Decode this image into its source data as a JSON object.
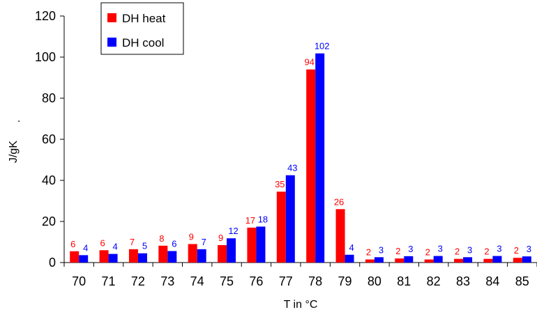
{
  "chart_data": {
    "type": "bar",
    "title": "",
    "xlabel": "T in °C",
    "ylabel": "J/gK",
    "ylabel_suffix": ".",
    "ylim": [
      0,
      120
    ],
    "yticks": [
      0,
      20,
      40,
      60,
      80,
      100,
      120
    ],
    "grid": false,
    "legend_position": "top-left",
    "categories": [
      "70",
      "71",
      "72",
      "73",
      "74",
      "75",
      "76",
      "77",
      "78",
      "79",
      "80",
      "81",
      "82",
      "83",
      "84",
      "85"
    ],
    "series": [
      {
        "name": "DH heat",
        "color": "#ff0000",
        "values": [
          5.5,
          6.0,
          6.5,
          8.2,
          9.0,
          8.5,
          17.0,
          34.5,
          94.0,
          26.0,
          1.5,
          2.0,
          1.5,
          1.8,
          1.8,
          2.3
        ],
        "labels": [
          "6",
          "6",
          "7",
          "8",
          "9",
          "9",
          "17",
          "35",
          "94",
          "26",
          "2",
          "2",
          "2",
          "2",
          "2",
          "2"
        ]
      },
      {
        "name": "DH cool",
        "color": "#0000ff",
        "values": [
          3.6,
          4.2,
          4.5,
          5.6,
          6.5,
          11.8,
          17.5,
          42.5,
          101.8,
          3.8,
          2.6,
          3.1,
          3.2,
          2.6,
          3.2,
          3.0
        ],
        "labels": [
          "4",
          "4",
          "5",
          "6",
          "7",
          "12",
          "18",
          "43",
          "102",
          "4",
          "3",
          "3",
          "3",
          "3",
          "3",
          "3"
        ]
      }
    ]
  }
}
